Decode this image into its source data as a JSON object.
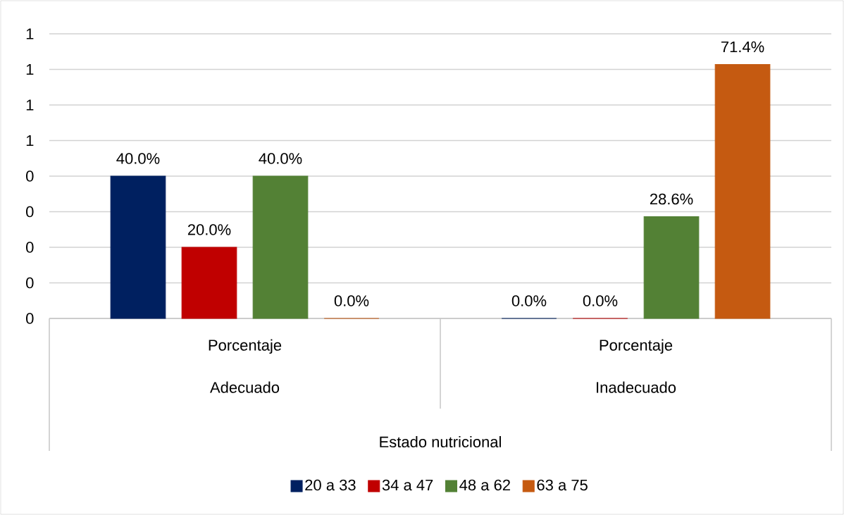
{
  "chart_data": {
    "type": "bar",
    "annotations": [
      "Estado nutricional"
    ],
    "categories": [
      "Porcentaje Adecuado",
      "Porcentaje Inadecuado"
    ],
    "series": [
      {
        "name": "20 a 33",
        "color": "#002060",
        "values": [
          0.4,
          0.0
        ],
        "value_labels": [
          "40.0%",
          "0.0%"
        ]
      },
      {
        "name": "34 a 47",
        "color": "#c00000",
        "values": [
          0.2,
          0.0
        ],
        "value_labels": [
          "20.0%",
          "0.0%"
        ]
      },
      {
        "name": "48 a 62",
        "color": "#538135",
        "values": [
          0.4,
          0.286
        ],
        "value_labels": [
          "40.0%",
          "28.6%"
        ]
      },
      {
        "name": "63 a 75",
        "color": "#c55a11",
        "values": [
          0.0,
          0.714
        ],
        "value_labels": [
          "0.0%",
          "71.4%"
        ]
      }
    ],
    "ylim": [
      0,
      0.8
    ],
    "yticks": [
      {
        "value": 0,
        "label": "0"
      },
      {
        "value": 0.1,
        "label": "0"
      },
      {
        "value": 0.2,
        "label": "0"
      },
      {
        "value": 0.3,
        "label": "0"
      },
      {
        "value": 0.4,
        "label": "0"
      },
      {
        "value": 0.5,
        "label": "1"
      },
      {
        "value": 0.6,
        "label": "1"
      },
      {
        "value": 0.7,
        "label": "1"
      },
      {
        "value": 0.8,
        "label": "1"
      }
    ],
    "grid": "y",
    "legend": "bottom"
  }
}
